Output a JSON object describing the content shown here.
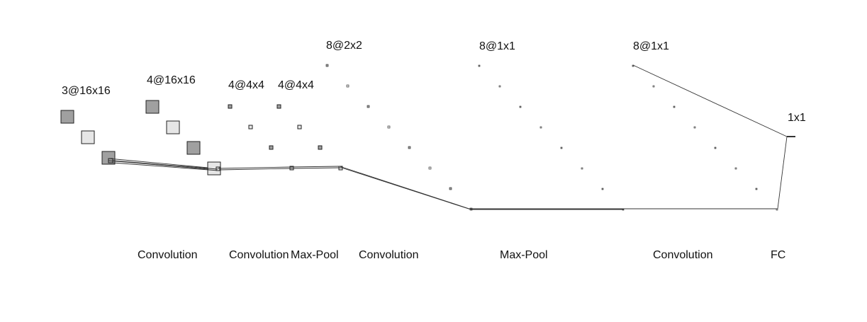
{
  "layer_labels": [
    "3@16x16",
    "4@16x16",
    "4@4x4",
    "4@4x4",
    "8@2x2",
    "8@1x1",
    "8@1x1",
    "1x1"
  ],
  "operation_labels": [
    "Convolution",
    "Convolution",
    "Max-Pool",
    "Convolution",
    "Max-Pool",
    "Convolution",
    "FC"
  ],
  "colors": {
    "dark_fill": "#a0a0a0",
    "light_fill": "#e6e6e6",
    "stroke": "#222222",
    "line": "#333333"
  }
}
